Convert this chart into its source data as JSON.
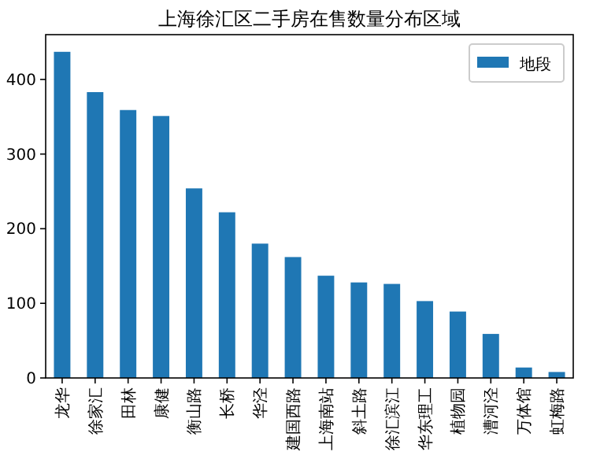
{
  "chart_data": {
    "type": "bar",
    "title": "上海徐汇区二手房在售数量分布区域",
    "categories": [
      "龙华",
      "徐家汇",
      "田林",
      "康健",
      "衡山路",
      "长桥",
      "华泾",
      "建国西路",
      "上海南站",
      "斜土路",
      "徐汇滨江",
      "华东理工",
      "植物园",
      "漕河泾",
      "万体馆",
      "虹梅路"
    ],
    "series": [
      {
        "name": "地段",
        "color": "#1f77b4",
        "values": [
          437,
          383,
          359,
          351,
          254,
          222,
          180,
          162,
          137,
          128,
          126,
          103,
          89,
          59,
          14,
          8
        ]
      }
    ],
    "ylim": [
      0,
      460
    ],
    "yticks": [
      0,
      100,
      200,
      300,
      400
    ],
    "legend": "top right",
    "grid": false
  }
}
